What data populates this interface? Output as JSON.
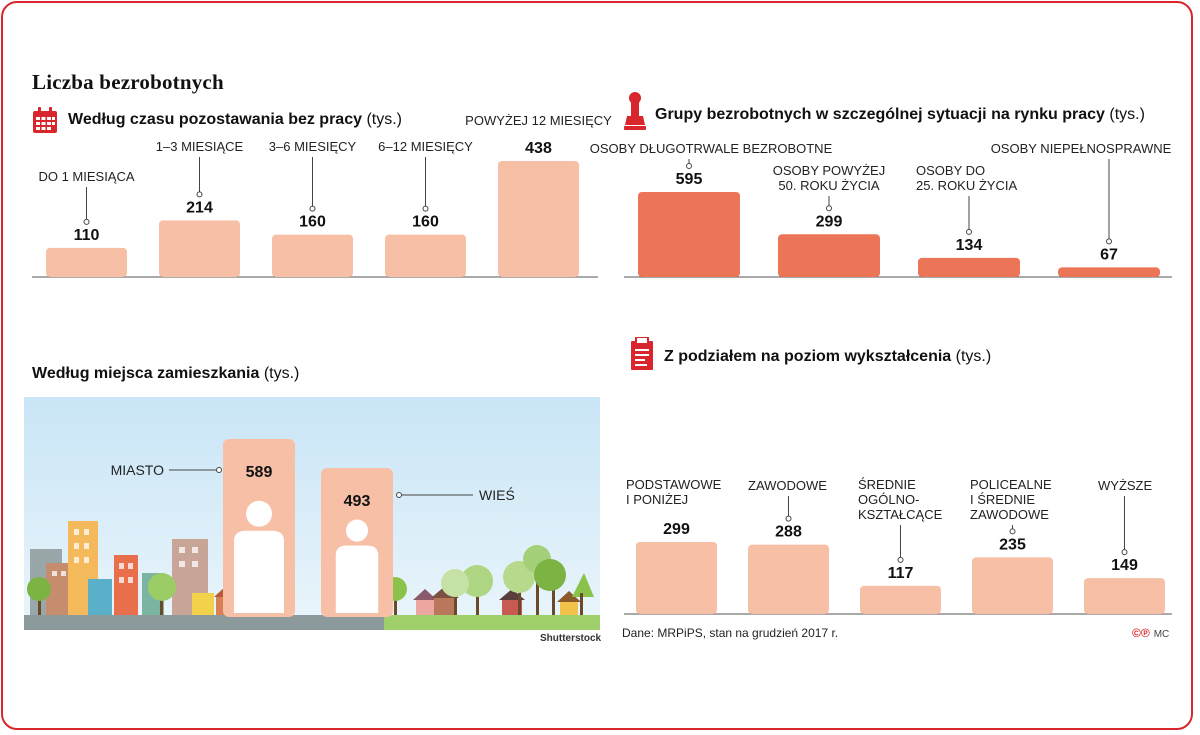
{
  "title": "Liczba bezrobotnych",
  "section_time": {
    "title": "Według czasu pozostawania bez pracy",
    "unit": "(tys.)"
  },
  "section_groups": {
    "title": "Grupy bezrobotnych w szczególnej sytuacji na rynku pracy",
    "unit": "(tys.)"
  },
  "section_place": {
    "title": "Według miejsca zamieszkania",
    "unit": "(tys.)"
  },
  "section_edu": {
    "title": "Z podziałem na poziom wykształcenia",
    "unit": "(tys.)"
  },
  "source": "Dane: MRPiPS, stan na grudzień 2017 r.",
  "photo_credit": "Shutterstock",
  "credit": "©℗",
  "credit_initials": "MC",
  "colors": {
    "light_bar": "#f7bfa5",
    "dark_bar": "#ec7557",
    "accent": "#d9262c",
    "figure": "#f7bfa5",
    "sky": "#d5ebf8",
    "ground": "#9fcf6a"
  },
  "chart_data": [
    {
      "type": "bar",
      "title": "Według czasu pozostawania bez pracy",
      "unit": "(tys.)",
      "categories": [
        [
          "DO 1 MIESIĄCA"
        ],
        [
          "1–3 MIESIĄCE"
        ],
        [
          "3–6 MIESIĘCY"
        ],
        [
          "6–12 MIESIĘCY"
        ],
        [
          "POWYŻEJ 12 MIESIĘCY"
        ]
      ],
      "values": [
        110,
        214,
        160,
        160,
        438
      ],
      "ylim": [
        0,
        438
      ]
    },
    {
      "type": "bar",
      "title": "Grupy bezrobotnych w szczególnej sytuacji na rynku pracy",
      "unit": "(tys.)",
      "categories": [
        [
          "OSOBY DŁUGOTRWALE BEZROBOTNE"
        ],
        [
          "OSOBY POWYŻEJ",
          "50. ROKU ŻYCIA"
        ],
        [
          "OSOBY DO",
          "25. ROKU ŻYCIA"
        ],
        [
          "OSOBY NIEPEŁNOSPRAWNE"
        ]
      ],
      "values": [
        595,
        299,
        134,
        67
      ],
      "ylim": [
        0,
        595
      ]
    },
    {
      "type": "bar",
      "title": "Według miejsca zamieszkania",
      "unit": "(tys.)",
      "categories": [
        [
          "MIASTO"
        ],
        [
          "WIEŚ"
        ]
      ],
      "values": [
        589,
        493
      ],
      "ylim": [
        0,
        589
      ]
    },
    {
      "type": "bar",
      "title": "Z podziałem na poziom wykształcenia",
      "unit": "(tys.)",
      "categories": [
        [
          "PODSTAWOWE",
          "I PONIŻEJ"
        ],
        [
          "ZAWODOWE"
        ],
        [
          "ŚREDNIE",
          "OGÓLNO-",
          "KSZTAŁCĄCE"
        ],
        [
          "POLICEALNE",
          "I ŚREDNIE",
          "ZAWODOWE"
        ],
        [
          "WYŻSZE"
        ]
      ],
      "values": [
        299,
        288,
        117,
        235,
        149
      ],
      "ylim": [
        0,
        299
      ]
    }
  ]
}
